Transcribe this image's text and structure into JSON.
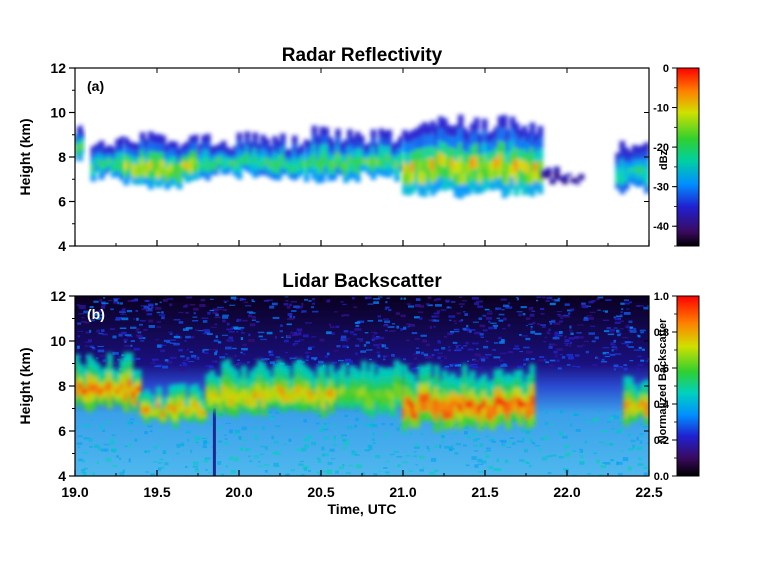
{
  "chart_data": [
    {
      "type": "heatmap",
      "panel_label": "(a)",
      "title": "Radar Reflectivity",
      "xlabel": "",
      "ylabel": "Height (km)",
      "xlim": [
        19.0,
        22.5
      ],
      "ylim": [
        4,
        12
      ],
      "y_ticks": [
        "4",
        "6",
        "8",
        "10",
        "12"
      ],
      "colorbar": {
        "label": "dBz",
        "range": [
          -45,
          0
        ],
        "ticks": [
          "0",
          "-10",
          "-20",
          "-30",
          "-40"
        ]
      },
      "features": [
        {
          "x": [
            19.0,
            19.05
          ],
          "y": [
            7.8,
            9.4
          ],
          "peak": -14
        },
        {
          "x": [
            19.1,
            19.3
          ],
          "y": [
            7.0,
            8.8
          ],
          "peak": -17
        },
        {
          "x": [
            19.3,
            19.75
          ],
          "y": [
            6.7,
            9.0
          ],
          "peak": -8
        },
        {
          "x": [
            19.75,
            20.4
          ],
          "y": [
            7.1,
            9.0
          ],
          "peak": -17
        },
        {
          "x": [
            20.4,
            21.0
          ],
          "y": [
            7.0,
            9.2
          ],
          "peak": -15
        },
        {
          "x": [
            21.0,
            21.85
          ],
          "y": [
            6.4,
            9.6
          ],
          "peak": -6
        },
        {
          "x": [
            21.85,
            22.1
          ],
          "y": [
            6.8,
            7.5
          ],
          "peak": -40
        },
        {
          "x": [
            22.3,
            22.5
          ],
          "y": [
            6.5,
            8.6
          ],
          "peak": -20
        }
      ]
    },
    {
      "type": "heatmap",
      "panel_label": "(b)",
      "title": "Lidar Backscatter",
      "xlabel": "Time, UTC",
      "ylabel": "Height (km)",
      "xlim": [
        19.0,
        22.5
      ],
      "ylim": [
        4,
        12
      ],
      "x_ticks": [
        "19.0",
        "19.5",
        "20.0",
        "20.5",
        "21.0",
        "21.5",
        "22.0",
        "22.5"
      ],
      "y_ticks": [
        "4",
        "6",
        "8",
        "10",
        "12"
      ],
      "colorbar": {
        "label": "Normalized Backscatter",
        "range": [
          0.0,
          1.0
        ],
        "ticks": [
          "1.0",
          "0.8",
          "0.6",
          "0.4",
          "0.2",
          "0.0"
        ]
      },
      "features": [
        {
          "x": [
            19.0,
            19.4
          ],
          "y": [
            7.0,
            9.3
          ],
          "peak": 0.95
        },
        {
          "x": [
            19.4,
            19.8
          ],
          "y": [
            6.3,
            8.0
          ],
          "peak": 0.9
        },
        {
          "x": [
            19.8,
            20.6
          ],
          "y": [
            6.8,
            9.0
          ],
          "peak": 0.85
        },
        {
          "x": [
            20.6,
            21.0
          ],
          "y": [
            6.8,
            9.0
          ],
          "peak": 0.7
        },
        {
          "x": [
            21.0,
            21.8
          ],
          "y": [
            6.2,
            8.8
          ],
          "peak": 1.0
        },
        {
          "x": [
            22.35,
            22.5
          ],
          "y": [
            6.4,
            8.4
          ],
          "peak": 0.9
        }
      ]
    }
  ]
}
